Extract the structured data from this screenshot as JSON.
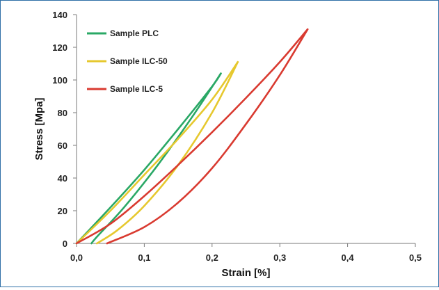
{
  "chart_data": {
    "type": "line",
    "title": "",
    "xlabel": "Strain  [%]",
    "ylabel": "Stress [Mpa]",
    "xlim": [
      0,
      0.5
    ],
    "ylim": [
      0,
      140
    ],
    "x_ticks": [
      0,
      0.1,
      0.2,
      0.3,
      0.4,
      0.5
    ],
    "x_tick_labels": [
      "0,0",
      "0,1",
      "0,2",
      "0,3",
      "0,4",
      "0,5"
    ],
    "y_ticks": [
      0,
      20,
      40,
      60,
      80,
      100,
      120,
      140
    ],
    "y_tick_labels": [
      "0",
      "20",
      "40",
      "60",
      "80",
      "100",
      "120",
      "140"
    ],
    "grid": false,
    "legend_position": "top-left",
    "series": [
      {
        "name": "Sample PLC",
        "color": "#2aa866",
        "loading": [
          [
            0.0,
            0
          ],
          [
            0.05,
            22
          ],
          [
            0.1,
            45
          ],
          [
            0.15,
            70
          ],
          [
            0.2,
            96
          ],
          [
            0.213,
            104
          ]
        ],
        "unloading": [
          [
            0.213,
            104
          ],
          [
            0.17,
            77
          ],
          [
            0.12,
            48
          ],
          [
            0.07,
            22
          ],
          [
            0.03,
            4
          ],
          [
            0.022,
            0
          ]
        ]
      },
      {
        "name": "Sample ILC-50",
        "color": "#e6c82e",
        "loading": [
          [
            0.0,
            0
          ],
          [
            0.05,
            20
          ],
          [
            0.1,
            42
          ],
          [
            0.15,
            64
          ],
          [
            0.2,
            88
          ],
          [
            0.238,
            111
          ]
        ],
        "unloading": [
          [
            0.238,
            111
          ],
          [
            0.2,
            80
          ],
          [
            0.15,
            48
          ],
          [
            0.1,
            23
          ],
          [
            0.06,
            8
          ],
          [
            0.03,
            0
          ]
        ]
      },
      {
        "name": "Sample ILC-5",
        "color": "#d93a30",
        "loading": [
          [
            0.0,
            0
          ],
          [
            0.05,
            12
          ],
          [
            0.1,
            29
          ],
          [
            0.15,
            48
          ],
          [
            0.2,
            68
          ],
          [
            0.25,
            89
          ],
          [
            0.3,
            111
          ],
          [
            0.341,
            131
          ]
        ],
        "unloading": [
          [
            0.341,
            131
          ],
          [
            0.3,
            103
          ],
          [
            0.25,
            73
          ],
          [
            0.2,
            46
          ],
          [
            0.15,
            25
          ],
          [
            0.1,
            10
          ],
          [
            0.045,
            0
          ]
        ]
      }
    ]
  }
}
